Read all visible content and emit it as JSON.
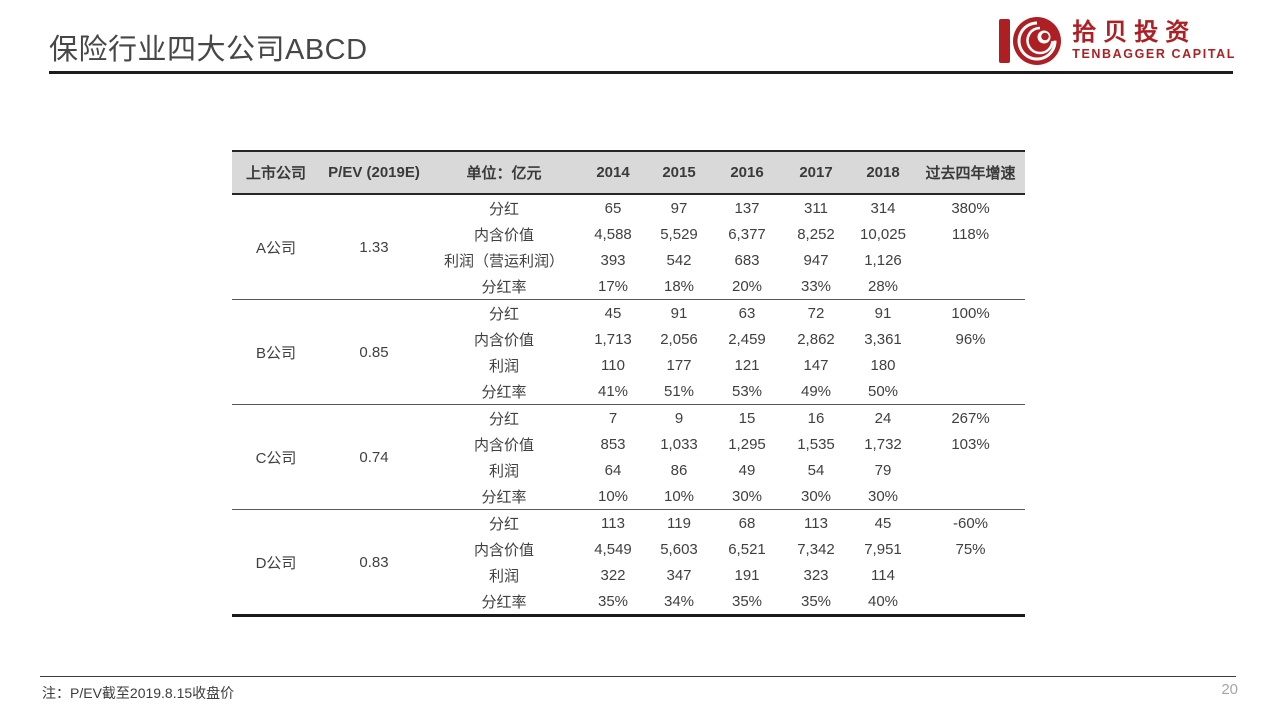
{
  "slide": {
    "title": "保险行业四大公司ABCD",
    "footnote": "注：P/EV截至2019.8.15收盘价",
    "page_number": "20"
  },
  "logo": {
    "cn": "拾贝投资",
    "en": "TENBAGGER CAPITAL",
    "brand_color": "#ae1f24"
  },
  "colors": {
    "body_text": "#404040",
    "header_bg": "#d9d9d9",
    "rule_dark": "#1c1c1c",
    "group_separator": "#595959"
  },
  "table": {
    "headers": [
      "上市公司",
      "P/EV (2019E)",
      "单位：亿元",
      "2014",
      "2015",
      "2016",
      "2017",
      "2018",
      "过去四年增速"
    ],
    "groups": [
      {
        "company": "A公司",
        "pev": "1.33",
        "rows": [
          {
            "metric": "分红",
            "values": [
              "65",
              "97",
              "137",
              "311",
              "314"
            ],
            "growth": "380%"
          },
          {
            "metric": "内含价值",
            "values": [
              "4,588",
              "5,529",
              "6,377",
              "8,252",
              "10,025"
            ],
            "growth": "118%"
          },
          {
            "metric": "利润（营运利润）",
            "values": [
              "393",
              "542",
              "683",
              "947",
              "1,126"
            ],
            "growth": ""
          },
          {
            "metric": "分红率",
            "values": [
              "17%",
              "18%",
              "20%",
              "33%",
              "28%"
            ],
            "growth": ""
          }
        ]
      },
      {
        "company": "B公司",
        "pev": "0.85",
        "rows": [
          {
            "metric": "分红",
            "values": [
              "45",
              "91",
              "63",
              "72",
              "91"
            ],
            "growth": "100%"
          },
          {
            "metric": "内含价值",
            "values": [
              "1,713",
              "2,056",
              "2,459",
              "2,862",
              "3,361"
            ],
            "growth": "96%"
          },
          {
            "metric": "利润",
            "values": [
              "110",
              "177",
              "121",
              "147",
              "180"
            ],
            "growth": ""
          },
          {
            "metric": "分红率",
            "values": [
              "41%",
              "51%",
              "53%",
              "49%",
              "50%"
            ],
            "growth": ""
          }
        ]
      },
      {
        "company": "C公司",
        "pev": "0.74",
        "rows": [
          {
            "metric": "分红",
            "values": [
              "7",
              "9",
              "15",
              "16",
              "24"
            ],
            "growth": "267%"
          },
          {
            "metric": "内含价值",
            "values": [
              "853",
              "1,033",
              "1,295",
              "1,535",
              "1,732"
            ],
            "growth": "103%"
          },
          {
            "metric": "利润",
            "values": [
              "64",
              "86",
              "49",
              "54",
              "79"
            ],
            "growth": ""
          },
          {
            "metric": "分红率",
            "values": [
              "10%",
              "10%",
              "30%",
              "30%",
              "30%"
            ],
            "growth": ""
          }
        ]
      },
      {
        "company": "D公司",
        "pev": "0.83",
        "rows": [
          {
            "metric": "分红",
            "values": [
              "113",
              "119",
              "68",
              "113",
              "45"
            ],
            "growth": "-60%"
          },
          {
            "metric": "内含价值",
            "values": [
              "4,549",
              "5,603",
              "6,521",
              "7,342",
              "7,951"
            ],
            "growth": "75%"
          },
          {
            "metric": "利润",
            "values": [
              "322",
              "347",
              "191",
              "323",
              "114"
            ],
            "growth": ""
          },
          {
            "metric": "分红率",
            "values": [
              "35%",
              "34%",
              "35%",
              "35%",
              "40%"
            ],
            "growth": ""
          }
        ]
      }
    ]
  }
}
